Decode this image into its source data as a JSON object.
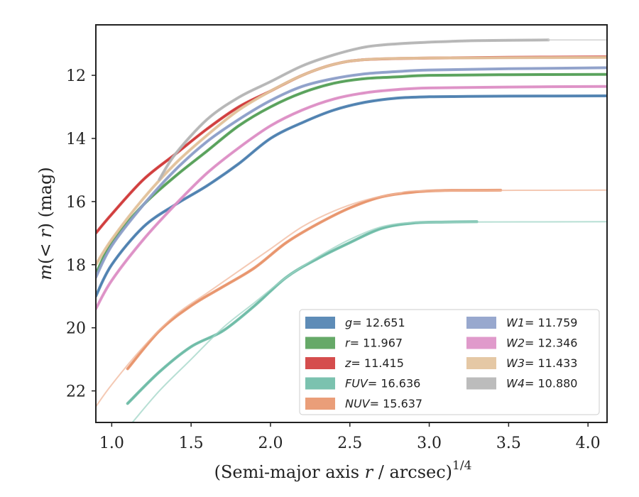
{
  "chart_data": {
    "type": "line",
    "xlabel": "(Semi-major axis r / arcsec)",
    "xlabel_parts": {
      "prefix": "(Semi-major axis ",
      "var": "r",
      "suffix": " / arcsec)",
      "sup": "1/4"
    },
    "ylabel": "m(<r) (mag)",
    "ylabel_parts": {
      "var": "m",
      "open": "(",
      "inner": "< r",
      "close": ") (mag)"
    },
    "xlim": [
      0.9,
      4.12
    ],
    "ylim": [
      23.0,
      10.4
    ],
    "y_inverted": true,
    "xticks": [
      "1.0",
      "1.5",
      "2.0",
      "2.5",
      "3.0",
      "3.5",
      "4.0"
    ],
    "yticks": [
      "12",
      "14",
      "16",
      "18",
      "20",
      "22"
    ],
    "legend_position": "lower-right",
    "grid": false,
    "series": [
      {
        "name": "g",
        "label_value": "= 12.651",
        "color": "#4c7faf",
        "style": "band",
        "x": [
          0.9,
          1.0,
          1.2,
          1.4,
          1.6,
          1.8,
          2.0,
          2.2,
          2.4,
          2.6,
          2.8,
          3.0,
          3.2,
          3.5,
          4.12
        ],
        "y": [
          19.0,
          18.0,
          16.8,
          16.1,
          15.5,
          14.8,
          14.0,
          13.5,
          13.1,
          12.85,
          12.72,
          12.68,
          12.67,
          12.66,
          12.65
        ]
      },
      {
        "name": "r",
        "label_value": "= 11.967",
        "color": "#55a058",
        "style": "band",
        "x": [
          0.9,
          1.0,
          1.2,
          1.4,
          1.6,
          1.8,
          2.0,
          2.2,
          2.4,
          2.6,
          2.8,
          3.0,
          3.5,
          4.12
        ],
        "y": [
          18.3,
          17.3,
          16.1,
          15.2,
          14.4,
          13.6,
          13.0,
          12.55,
          12.25,
          12.1,
          12.05,
          12.0,
          11.98,
          11.97
        ]
      },
      {
        "name": "z",
        "label_value": "= 11.415",
        "color": "#d03a3a",
        "style": "band",
        "x": [
          0.9,
          1.0,
          1.2,
          1.4,
          1.6,
          1.8,
          2.0,
          2.2,
          2.4,
          2.6,
          3.0,
          3.5,
          4.12
        ],
        "y": [
          17.0,
          16.4,
          15.3,
          14.5,
          13.7,
          13.0,
          12.5,
          12.0,
          11.65,
          11.5,
          11.45,
          11.43,
          11.415
        ]
      },
      {
        "name": "FUV",
        "label_value": "= 16.636",
        "color": "#6dbba6",
        "style": "band",
        "x": [
          1.1,
          1.3,
          1.5,
          1.7,
          1.9,
          2.1,
          2.3,
          2.5,
          2.7,
          2.9,
          3.1,
          3.3
        ],
        "y": [
          22.4,
          21.4,
          20.6,
          20.1,
          19.3,
          18.4,
          17.8,
          17.3,
          16.85,
          16.68,
          16.65,
          16.64
        ]
      },
      {
        "name": "FUV-extended",
        "color": "#9fd4c5",
        "style": "thin",
        "x": [
          1.13,
          1.3,
          1.5,
          1.7,
          1.9,
          2.1,
          2.3,
          2.5,
          2.7,
          2.9,
          3.1,
          4.12
        ],
        "y": [
          23.0,
          22.0,
          21.0,
          20.0,
          19.2,
          18.4,
          17.75,
          17.2,
          16.8,
          16.66,
          16.65,
          16.64
        ]
      },
      {
        "name": "NUV",
        "label_value": "= 15.637",
        "color": "#e8936a",
        "style": "band",
        "x": [
          1.1,
          1.3,
          1.5,
          1.7,
          1.9,
          2.1,
          2.3,
          2.5,
          2.7,
          2.9,
          3.1,
          3.45
        ],
        "y": [
          21.3,
          20.1,
          19.3,
          18.7,
          18.1,
          17.3,
          16.7,
          16.2,
          15.85,
          15.7,
          15.65,
          15.64
        ]
      },
      {
        "name": "NUV-extended",
        "color": "#f0b79b",
        "style": "thin",
        "x": [
          0.9,
          1.0,
          1.2,
          1.4,
          1.6,
          1.8,
          2.0,
          2.2,
          2.4,
          2.6,
          2.8,
          3.0,
          4.12
        ],
        "y": [
          22.5,
          21.8,
          20.6,
          19.6,
          18.9,
          18.2,
          17.5,
          16.8,
          16.3,
          15.95,
          15.75,
          15.66,
          15.637
        ]
      },
      {
        "name": "W1",
        "label_value": "= 11.759",
        "color": "#8d9fc9",
        "style": "band",
        "x": [
          0.9,
          1.0,
          1.2,
          1.4,
          1.6,
          1.8,
          2.0,
          2.2,
          2.4,
          2.6,
          2.8,
          3.0,
          3.5,
          4.12
        ],
        "y": [
          18.4,
          17.4,
          16.1,
          15.0,
          14.1,
          13.4,
          12.8,
          12.35,
          12.1,
          11.95,
          11.88,
          11.83,
          11.79,
          11.76
        ]
      },
      {
        "name": "W2",
        "label_value": "= 12.346",
        "color": "#dd8fc5",
        "style": "band",
        "x": [
          0.9,
          1.0,
          1.2,
          1.4,
          1.6,
          1.8,
          2.0,
          2.2,
          2.4,
          2.6,
          2.8,
          3.0,
          3.5,
          4.12
        ],
        "y": [
          19.4,
          18.5,
          17.2,
          16.1,
          15.1,
          14.3,
          13.6,
          13.1,
          12.75,
          12.55,
          12.45,
          12.4,
          12.37,
          12.35
        ]
      },
      {
        "name": "W3",
        "label_value": "= 11.433",
        "color": "#e2c29b",
        "style": "band",
        "x": [
          0.9,
          1.0,
          1.2,
          1.4,
          1.6,
          1.8,
          2.0,
          2.2,
          2.4,
          2.6,
          3.0,
          3.5,
          4.12
        ],
        "y": [
          18.0,
          17.2,
          15.9,
          14.8,
          13.9,
          13.1,
          12.5,
          12.0,
          11.65,
          11.5,
          11.45,
          11.44,
          11.433
        ]
      },
      {
        "name": "W4",
        "label_value": "= 10.880",
        "color": "#b5b5b5",
        "style": "band",
        "x": [
          1.3,
          1.4,
          1.6,
          1.8,
          2.0,
          2.2,
          2.4,
          2.6,
          2.8,
          3.0,
          3.3,
          3.75
        ],
        "y": [
          15.3,
          14.5,
          13.4,
          12.7,
          12.2,
          11.7,
          11.35,
          11.1,
          11.0,
          10.95,
          10.9,
          10.88
        ]
      },
      {
        "name": "W4-extended",
        "color": "#cfcfcf",
        "style": "thin",
        "x": [
          3.75,
          4.12
        ],
        "y": [
          10.88,
          10.88
        ]
      }
    ],
    "legend": [
      {
        "name": "g",
        "value": "= 12.651",
        "color": "#4c7faf"
      },
      {
        "name": "r",
        "value": "= 11.967",
        "color": "#55a058"
      },
      {
        "name": "z",
        "value": "= 11.415",
        "color": "#d03a3a"
      },
      {
        "name": "FUV",
        "value": "= 16.636",
        "color": "#6dbba6"
      },
      {
        "name": "NUV",
        "value": "= 15.637",
        "color": "#e8936a"
      },
      {
        "name": "W1",
        "value": "= 11.759",
        "color": "#8d9fc9"
      },
      {
        "name": "W2",
        "value": "= 12.346",
        "color": "#dd8fc5"
      },
      {
        "name": "W3",
        "value": "= 11.433",
        "color": "#e2c29b"
      },
      {
        "name": "W4",
        "value": "= 10.880",
        "color": "#b5b5b5"
      }
    ]
  }
}
